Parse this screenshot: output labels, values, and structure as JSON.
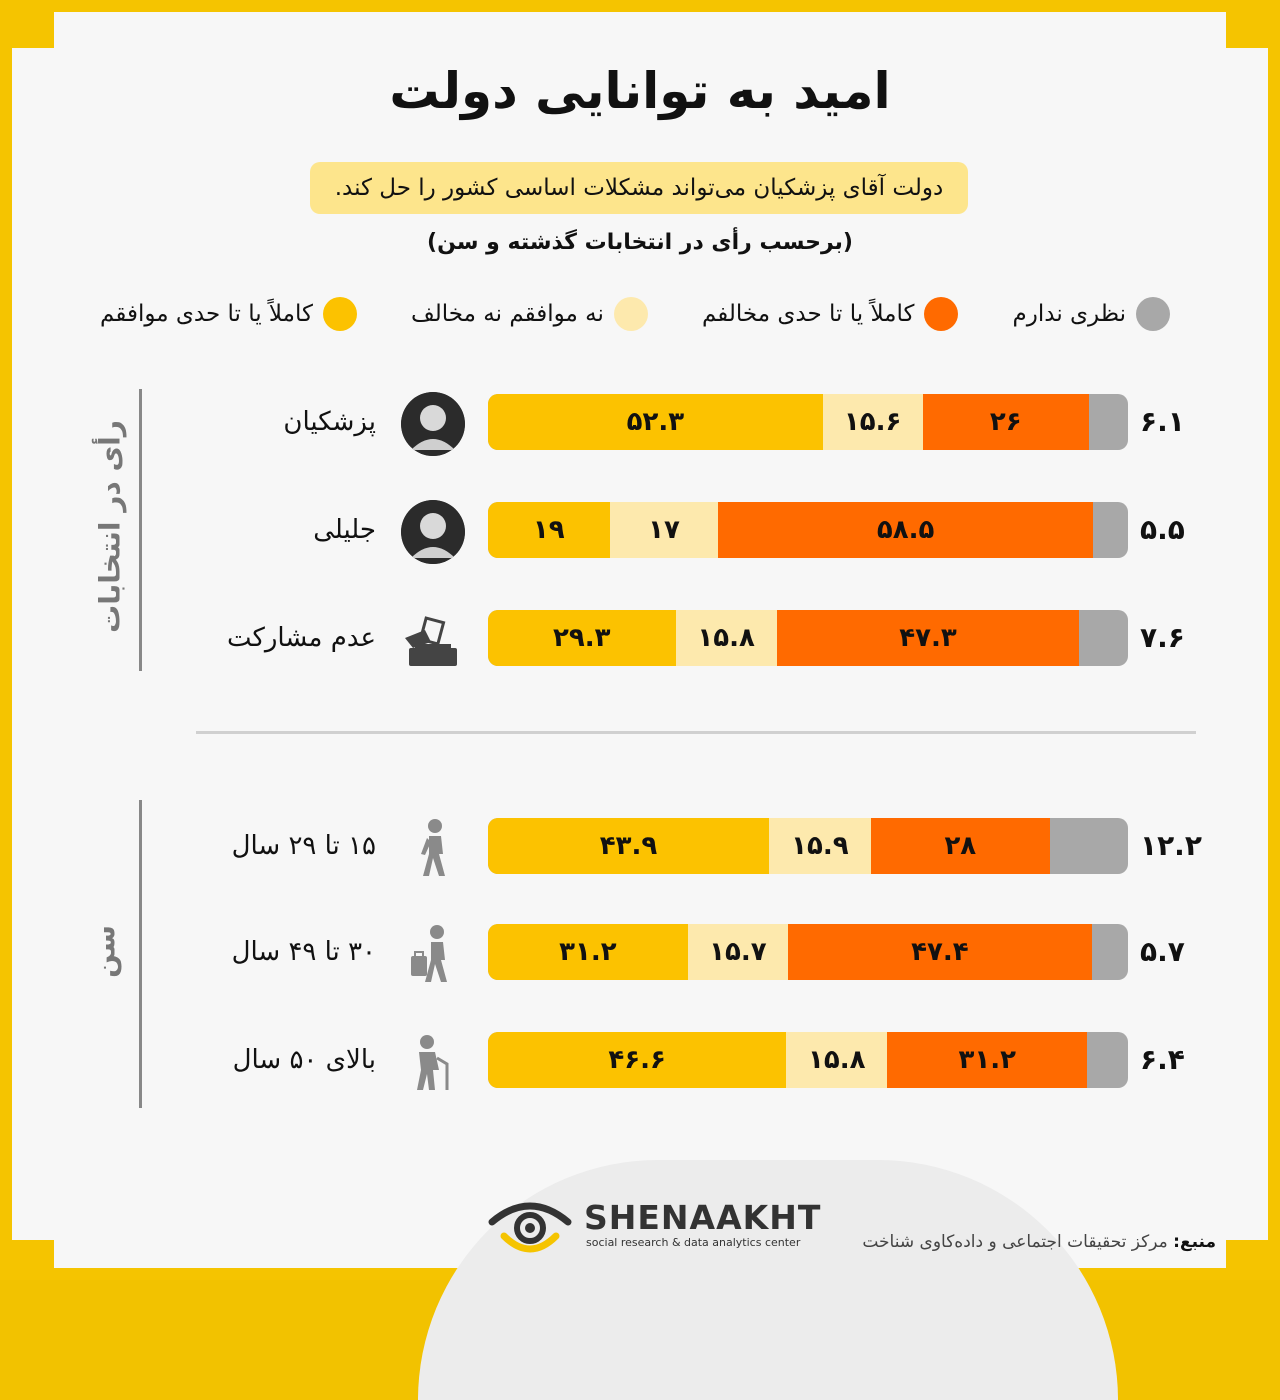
{
  "title": "امید به توانایی دولت",
  "subtitle": "دولت آقای پزشکیان می‌تواند مشکلات اساسی کشور را حل کند.",
  "note": "(برحسب رأی در انتخابات گذشته و سن)",
  "legend": [
    {
      "label": "نظری ندارم",
      "color": "#a8a8a8"
    },
    {
      "label": "کاملاً یا تا حدی مخالفم",
      "color": "#ff6a00"
    },
    {
      "label": "نه موافقم نه مخالف",
      "color": "#fde9ad"
    },
    {
      "label": "کاملاً یا تا حدی موافقم",
      "color": "#fcc200"
    }
  ],
  "groups": {
    "vote": "رأی در انتخابات",
    "age": "سن"
  },
  "chart_data": {
    "type": "bar",
    "orientation": "horizontal-stacked",
    "series_order": [
      "agree",
      "neutral",
      "disagree",
      "no_opinion"
    ],
    "rows": [
      {
        "label": "پزشکیان",
        "icon": "portrait-icon",
        "group": "vote",
        "agree": "۵۲.۳",
        "agree_v": 52.3,
        "neutral": "۱۵.۶",
        "neutral_v": 15.6,
        "disagree": "۲۶",
        "disagree_v": 26,
        "no_opinion": "۶.۱",
        "no_opinion_v": 6.1
      },
      {
        "label": "جلیلی",
        "icon": "portrait-icon",
        "group": "vote",
        "agree": "۱۹",
        "agree_v": 19,
        "neutral": "۱۷",
        "neutral_v": 17,
        "disagree": "۵۸.۵",
        "disagree_v": 58.5,
        "no_opinion": "۵.۵",
        "no_opinion_v": 5.5
      },
      {
        "label": "عدم مشارکت",
        "icon": "ballot-box-icon",
        "group": "vote",
        "agree": "۲۹.۳",
        "agree_v": 29.3,
        "neutral": "۱۵.۸",
        "neutral_v": 15.8,
        "disagree": "۴۷.۳",
        "disagree_v": 47.3,
        "no_opinion": "۷.۶",
        "no_opinion_v": 7.6
      },
      {
        "label": "۱۵ تا ۲۹ سال",
        "icon": "walking-person-icon",
        "group": "age",
        "agree": "۴۳.۹",
        "agree_v": 43.9,
        "neutral": "۱۵.۹",
        "neutral_v": 15.9,
        "disagree": "۲۸",
        "disagree_v": 28,
        "no_opinion": "۱۲.۲",
        "no_opinion_v": 12.2
      },
      {
        "label": "۳۰ تا ۴۹ سال",
        "icon": "person-with-bag-icon",
        "group": "age",
        "agree": "۳۱.۲",
        "agree_v": 31.2,
        "neutral": "۱۵.۷",
        "neutral_v": 15.7,
        "disagree": "۴۷.۴",
        "disagree_v": 47.4,
        "no_opinion": "۵.۷",
        "no_opinion_v": 5.7
      },
      {
        "label": "بالای ۵۰ سال",
        "icon": "elderly-person-icon",
        "group": "age",
        "agree": "۴۶.۶",
        "agree_v": 46.6,
        "neutral": "۱۵.۸",
        "neutral_v": 15.8,
        "disagree": "۳۱.۲",
        "disagree_v": 31.2,
        "no_opinion": "۶.۴",
        "no_opinion_v": 6.4
      }
    ]
  },
  "logo": {
    "name": "SHENAAKHT",
    "tagline": "social research & data analytics center"
  },
  "source": {
    "label": "منبع:",
    "text": " مرکز تحقیقات اجتماعی و داده‌کاوی شناخت"
  }
}
